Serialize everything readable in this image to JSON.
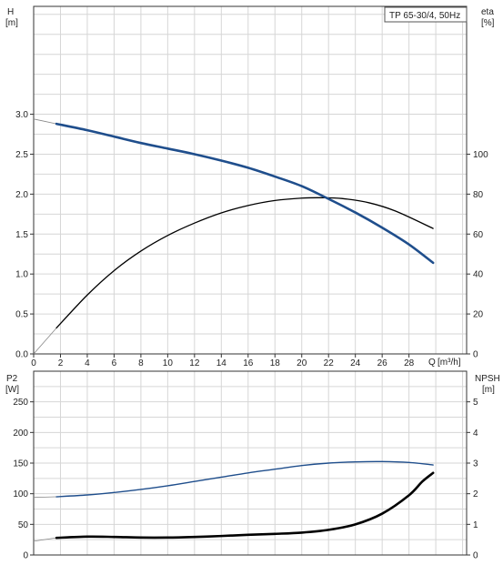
{
  "chart_data": [
    {
      "type": "line",
      "legend": "TP 65-30/4, 50Hz",
      "left_axis": {
        "name": "H",
        "unit": "[m]",
        "ticks": [
          "0.0",
          "0.5",
          "1.0",
          "1.5",
          "2.0",
          "2.5",
          "3.0"
        ],
        "ylim": [
          0,
          4.35
        ]
      },
      "right_axis": {
        "name": "eta",
        "unit": "[%]",
        "ticks": [
          "0",
          "20",
          "40",
          "60",
          "80",
          "100"
        ],
        "ylim": [
          0,
          174
        ]
      },
      "x_axis": {
        "name": "Q",
        "unit": "[m³/h]",
        "ticks": [
          "0",
          "2",
          "4",
          "6",
          "8",
          "10",
          "12",
          "14",
          "16",
          "18",
          "20",
          "22",
          "24",
          "26",
          "28"
        ],
        "xlim": [
          0,
          32.3
        ]
      },
      "grid": true,
      "series": [
        {
          "name": "H",
          "axis": "left",
          "color": "#1f4e8c",
          "points": [
            [
              0,
              2.94
            ],
            [
              1.7,
              2.88
            ],
            [
              4,
              2.8
            ],
            [
              6,
              2.72
            ],
            [
              8,
              2.64
            ],
            [
              10,
              2.57
            ],
            [
              12,
              2.5
            ],
            [
              14,
              2.42
            ],
            [
              16,
              2.33
            ],
            [
              18,
              2.22
            ],
            [
              20,
              2.1
            ],
            [
              22,
              1.94
            ],
            [
              24,
              1.77
            ],
            [
              26,
              1.58
            ],
            [
              28,
              1.37
            ],
            [
              29.8,
              1.14
            ]
          ]
        },
        {
          "name": "eta",
          "axis": "right",
          "color": "#000000",
          "points": [
            [
              0,
              0
            ],
            [
              1.7,
              13
            ],
            [
              4,
              29.5
            ],
            [
              6,
              41.7
            ],
            [
              8,
              51.5
            ],
            [
              10,
              59.3
            ],
            [
              12,
              65.5
            ],
            [
              14,
              70.6
            ],
            [
              16,
              74.3
            ],
            [
              18,
              76.8
            ],
            [
              20,
              78
            ],
            [
              21.5,
              78.2
            ],
            [
              23,
              77.8
            ],
            [
              25,
              75.7
            ],
            [
              27,
              71.5
            ],
            [
              29.8,
              62.8
            ]
          ]
        }
      ]
    },
    {
      "type": "line",
      "left_axis": {
        "name": "P2",
        "unit": "[W]",
        "ticks": [
          "0",
          "50",
          "100",
          "150",
          "200",
          "250"
        ],
        "ylim": [
          0,
          300
        ]
      },
      "right_axis": {
        "name": "NPSH",
        "unit": "[m]",
        "ticks": [
          "0",
          "1",
          "2",
          "3",
          "4",
          "5"
        ],
        "ylim": [
          0,
          6
        ]
      },
      "x_axis": {
        "xlim": [
          0,
          32.3
        ]
      },
      "grid": true,
      "series": [
        {
          "name": "P2",
          "axis": "left",
          "color": "#1f4e8c",
          "points": [
            [
              0,
              94
            ],
            [
              1.7,
              95
            ],
            [
              4,
              98
            ],
            [
              6,
              102
            ],
            [
              8,
              107
            ],
            [
              10,
              113
            ],
            [
              12,
              120
            ],
            [
              14,
              127
            ],
            [
              16,
              134
            ],
            [
              18,
              140
            ],
            [
              20,
              146
            ],
            [
              22,
              150
            ],
            [
              24,
              152
            ],
            [
              26,
              152.5
            ],
            [
              28,
              151
            ],
            [
              29.8,
              147
            ]
          ]
        },
        {
          "name": "NPSH",
          "axis": "right",
          "color": "#000000",
          "points": [
            [
              0,
              0.45
            ],
            [
              1.7,
              0.56
            ],
            [
              4,
              0.6
            ],
            [
              6,
              0.59
            ],
            [
              8,
              0.57
            ],
            [
              10,
              0.57
            ],
            [
              12,
              0.59
            ],
            [
              14,
              0.62
            ],
            [
              16,
              0.66
            ],
            [
              18,
              0.69
            ],
            [
              20,
              0.73
            ],
            [
              22,
              0.82
            ],
            [
              24,
              1.0
            ],
            [
              26,
              1.35
            ],
            [
              28,
              1.95
            ],
            [
              29,
              2.4
            ],
            [
              29.8,
              2.68
            ]
          ]
        }
      ]
    }
  ]
}
